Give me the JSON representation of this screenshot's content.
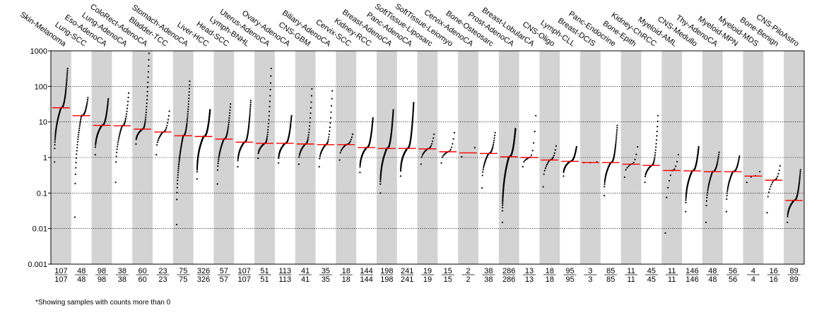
{
  "footnote": "*Showing samples with counts more than 0",
  "chart_data": {
    "type": "scatter",
    "yscale": "log",
    "ylim": [
      0.001,
      1000
    ],
    "yticks": [
      "0.001",
      "0.01",
      "0.1",
      "1",
      "10",
      "100",
      "1000"
    ],
    "grid": true,
    "categories": [
      {
        "name": "Skin-Melanoma",
        "median": 25,
        "n_shown": 107,
        "n_total": 107,
        "min": 0.75,
        "max": 320
      },
      {
        "name": "Lung-SCC",
        "median": 15,
        "n_shown": 48,
        "n_total": 48,
        "min": 0.021,
        "max": 48
      },
      {
        "name": "Eso-AdenoCA",
        "median": 8,
        "n_shown": 98,
        "n_total": 98,
        "min": 1.2,
        "max": 45
      },
      {
        "name": "Lung-AdenoCA",
        "median": 7.8,
        "n_shown": 38,
        "n_total": 38,
        "min": 0.2,
        "max": 65
      },
      {
        "name": "ColoRect-AdenoCA",
        "median": 6.3,
        "n_shown": 60,
        "n_total": 60,
        "min": 2.4,
        "max": 850
      },
      {
        "name": "Bladder-TCC",
        "median": 5.2,
        "n_shown": 23,
        "n_total": 23,
        "min": 1.2,
        "max": 20
      },
      {
        "name": "Stomach-AdenoCA",
        "median": 4.1,
        "n_shown": 75,
        "n_total": 75,
        "min": 0.013,
        "max": 140
      },
      {
        "name": "Liver-HCC",
        "median": 3.9,
        "n_shown": 326,
        "n_total": 326,
        "min": 0.25,
        "max": 22
      },
      {
        "name": "Head-SCC",
        "median": 3.3,
        "n_shown": 57,
        "n_total": 57,
        "min": 0.18,
        "max": 32
      },
      {
        "name": "Lymph-BNHL",
        "median": 2.7,
        "n_shown": 107,
        "n_total": 107,
        "min": 0.55,
        "max": 40
      },
      {
        "name": "Uterus-AdenoCA",
        "median": 2.5,
        "n_shown": 51,
        "n_total": 51,
        "min": 0.95,
        "max": 320
      },
      {
        "name": "Ovary-AdenoCA",
        "median": 2.5,
        "n_shown": 113,
        "n_total": 113,
        "min": 0.7,
        "max": 15
      },
      {
        "name": "CNS-GBM",
        "median": 2.4,
        "n_shown": 41,
        "n_total": 41,
        "min": 0.65,
        "max": 85
      },
      {
        "name": "Biliary-AdenoCA",
        "median": 2.3,
        "n_shown": 35,
        "n_total": 35,
        "min": 0.55,
        "max": 75
      },
      {
        "name": "Cervix-SCC",
        "median": 2.3,
        "n_shown": 18,
        "n_total": 18,
        "min": 0.85,
        "max": 4.5
      },
      {
        "name": "Kidney-RCC",
        "median": 1.9,
        "n_shown": 144,
        "n_total": 144,
        "min": 0.38,
        "max": 13
      },
      {
        "name": "Breast-AdenoCA",
        "median": 1.8,
        "n_shown": 198,
        "n_total": 198,
        "min": 0.1,
        "max": 22
      },
      {
        "name": "Panc-AdenoCA",
        "median": 1.8,
        "n_shown": 241,
        "n_total": 241,
        "min": 0.3,
        "max": 35
      },
      {
        "name": "SoftTissue-Liposarc",
        "median": 1.75,
        "n_shown": 19,
        "n_total": 19,
        "min": 0.65,
        "max": 4.5
      },
      {
        "name": "SoftTissue-Leiomyo",
        "median": 1.45,
        "n_shown": 15,
        "n_total": 15,
        "min": 0.7,
        "max": 5
      },
      {
        "name": "Cervix-AdenoCA",
        "median": 1.35,
        "n_shown": 2,
        "n_total": 2,
        "min": 1.05,
        "max": 1.9
      },
      {
        "name": "Bone-Osteosarc",
        "median": 1.3,
        "n_shown": 38,
        "n_total": 38,
        "min": 0.14,
        "max": 5
      },
      {
        "name": "Prost-AdenoCA",
        "median": 1.05,
        "n_shown": 286,
        "n_total": 286,
        "min": 0.015,
        "max": 6.5
      },
      {
        "name": "Breast-LobularCA",
        "median": 1.0,
        "n_shown": 13,
        "n_total": 13,
        "min": 0.55,
        "max": 15
      },
      {
        "name": "CNS-Oligo",
        "median": 0.85,
        "n_shown": 18,
        "n_total": 18,
        "min": 0.15,
        "max": 2.1
      },
      {
        "name": "Lymph-CLL",
        "median": 0.78,
        "n_shown": 95,
        "n_total": 95,
        "min": 0.3,
        "max": 2
      },
      {
        "name": "Breast-DCIS",
        "median": 0.72,
        "n_shown": 3,
        "n_total": 3,
        "min": 0.72,
        "max": 0.75
      },
      {
        "name": "Panc-Endocrine",
        "median": 0.72,
        "n_shown": 85,
        "n_total": 85,
        "min": 0.085,
        "max": 8
      },
      {
        "name": "Bone-Epith",
        "median": 0.65,
        "n_shown": 11,
        "n_total": 11,
        "min": 0.28,
        "max": 2
      },
      {
        "name": "Kidney-ChRCC",
        "median": 0.6,
        "n_shown": 45,
        "n_total": 45,
        "min": 0.2,
        "max": 15
      },
      {
        "name": "Myeloid-AML",
        "median": 0.43,
        "n_shown": 11,
        "n_total": 11,
        "min": 0.0075,
        "max": 1.2
      },
      {
        "name": "CNS-Medullo",
        "median": 0.42,
        "n_shown": 146,
        "n_total": 146,
        "min": 0.03,
        "max": 2
      },
      {
        "name": "Thy-AdenoCA",
        "median": 0.4,
        "n_shown": 48,
        "n_total": 48,
        "min": 0.015,
        "max": 1.4
      },
      {
        "name": "Myeloid-MPN",
        "median": 0.4,
        "n_shown": 56,
        "n_total": 56,
        "min": 0.03,
        "max": 1.1
      },
      {
        "name": "Myeloid-MDS",
        "median": 0.3,
        "n_shown": 4,
        "n_total": 4,
        "min": 0.2,
        "max": 0.4
      },
      {
        "name": "Bone-Benign",
        "median": 0.23,
        "n_shown": 16,
        "n_total": 16,
        "min": 0.028,
        "max": 0.58
      },
      {
        "name": "CNS-PiloAstro",
        "median": 0.062,
        "n_shown": 89,
        "n_total": 89,
        "min": 0.015,
        "max": 0.45
      }
    ]
  }
}
